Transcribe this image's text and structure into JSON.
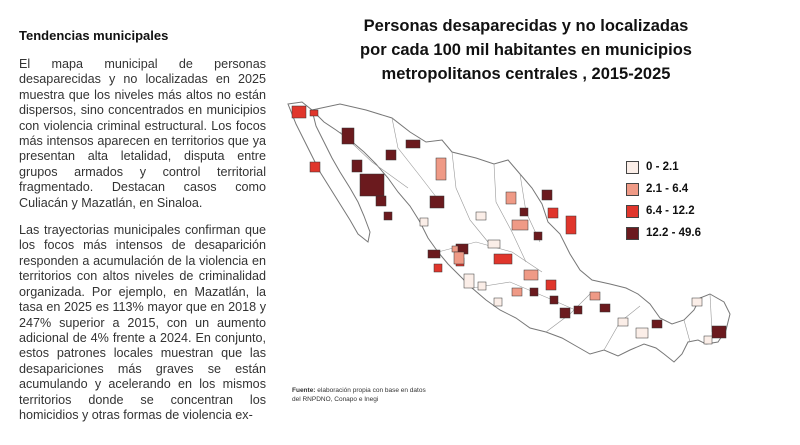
{
  "article": {
    "heading": "Tendencias municipales",
    "paragraphs": [
      "El mapa municipal de personas desaparecidas y no localizadas en 2025 muestra que los niveles más altos no están dispersos, sino concentrados en municipios con violencia criminal estructural. Los focos más intensos aparecen en territorios que ya presentan alta letalidad, disputa entre grupos armados y control territorial fragmentado. Destacan casos como Culiacán y Mazatlán, en Sinaloa.",
      "Las trayectorias municipales confirman que los focos más intensos de desaparición responden a acumulación de la violencia en territorios con altos niveles de criminalidad organizada. Por ejemplo, en Mazatlán, la tasa en 2025 es 113% mayor que en 2018 y 247% superior a 2015, con un aumento adicional de 4% frente a 2024. En conjunto, estos patrones locales muestran que las desapariciones más graves se están acumulando y acelerando en los mismos territorios donde se concentran los homicidios y otras formas de violencia ex-"
    ]
  },
  "map": {
    "title_lines": [
      "Personas desaparecidas y no localizadas",
      "por cada 100 mil habitantes en municipios",
      "metropolitanos centrales , 2015-2025"
    ],
    "legend": [
      {
        "label": "0 - 2.1",
        "color": "#fbeee8"
      },
      {
        "label": "2.1 - 6.4",
        "color": "#ef9a86"
      },
      {
        "label": "6.4 - 12.2",
        "color": "#e0362c"
      },
      {
        "label": "12.2 - 49.6",
        "color": "#6b1a1e"
      }
    ],
    "source_label": "Fuente:",
    "source_text": " elaboración propia con base en datos del RNPDNO, Conapo e Inegi"
  }
}
